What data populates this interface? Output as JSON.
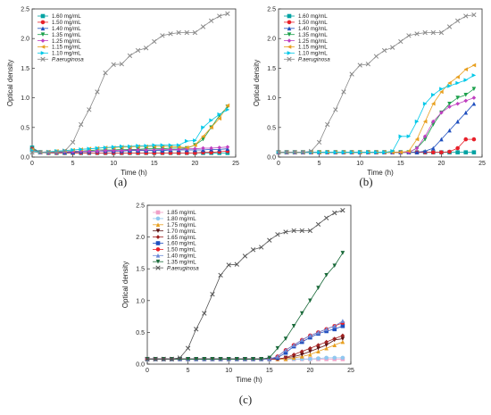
{
  "figure": {
    "panels": [
      {
        "label": "(a)"
      },
      {
        "label": "(b)"
      },
      {
        "label": "(c)"
      }
    ]
  },
  "chart_data": [
    {
      "type": "line",
      "panel": "(a)",
      "xlabel": "Time (h)",
      "ylabel": "Optical density",
      "xlim": [
        0,
        25
      ],
      "ylim": [
        0,
        2.5
      ],
      "xticks": [
        0,
        5,
        10,
        15,
        20,
        25
      ],
      "yticks": [
        0.0,
        0.5,
        1.0,
        1.5,
        2.0,
        2.5
      ],
      "grid": false,
      "legend": "top-left",
      "x": [
        0,
        1,
        2,
        3,
        4,
        5,
        6,
        7,
        8,
        9,
        10,
        11,
        12,
        13,
        14,
        15,
        16,
        17,
        18,
        19,
        20,
        21,
        22,
        23,
        24
      ],
      "series": [
        {
          "name": "1.60 mg/mL",
          "color": "#00a3a3",
          "marker": "square",
          "values": [
            0.16,
            0.08,
            0.07,
            0.07,
            0.07,
            0.07,
            0.07,
            0.07,
            0.07,
            0.07,
            0.07,
            0.07,
            0.07,
            0.07,
            0.07,
            0.07,
            0.07,
            0.07,
            0.07,
            0.07,
            0.07,
            0.07,
            0.07,
            0.07,
            0.07
          ]
        },
        {
          "name": "1.50 mg/mL",
          "color": "#e8202a",
          "marker": "circle",
          "values": [
            0.14,
            0.08,
            0.07,
            0.07,
            0.07,
            0.07,
            0.07,
            0.07,
            0.07,
            0.07,
            0.07,
            0.07,
            0.07,
            0.07,
            0.07,
            0.07,
            0.07,
            0.07,
            0.07,
            0.07,
            0.07,
            0.08,
            0.08,
            0.09,
            0.1
          ]
        },
        {
          "name": "1.40 mg/mL",
          "color": "#1f4fbf",
          "marker": "triangle-up",
          "values": [
            0.13,
            0.08,
            0.08,
            0.08,
            0.08,
            0.08,
            0.09,
            0.09,
            0.1,
            0.1,
            0.1,
            0.1,
            0.11,
            0.11,
            0.11,
            0.11,
            0.11,
            0.12,
            0.12,
            0.12,
            0.12,
            0.12,
            0.13,
            0.13,
            0.14
          ]
        },
        {
          "name": "1.35 mg/mL",
          "color": "#1aa04a",
          "marker": "triangle-down",
          "values": [
            0.12,
            0.08,
            0.08,
            0.09,
            0.09,
            0.1,
            0.1,
            0.11,
            0.12,
            0.12,
            0.12,
            0.13,
            0.13,
            0.13,
            0.14,
            0.14,
            0.14,
            0.15,
            0.15,
            0.15,
            0.2,
            0.3,
            0.5,
            0.7,
            0.85
          ]
        },
        {
          "name": "1.25 mg/mL",
          "color": "#c040c0",
          "marker": "diamond",
          "values": [
            0.12,
            0.08,
            0.08,
            0.08,
            0.09,
            0.09,
            0.1,
            0.1,
            0.1,
            0.11,
            0.11,
            0.11,
            0.12,
            0.12,
            0.12,
            0.12,
            0.13,
            0.13,
            0.13,
            0.14,
            0.14,
            0.15,
            0.15,
            0.16,
            0.17
          ]
        },
        {
          "name": "1.15 mg/mL",
          "color": "#e8a020",
          "marker": "triangle-left",
          "values": [
            0.12,
            0.08,
            0.09,
            0.1,
            0.11,
            0.12,
            0.13,
            0.14,
            0.15,
            0.16,
            0.16,
            0.17,
            0.17,
            0.18,
            0.18,
            0.18,
            0.18,
            0.18,
            0.17,
            0.16,
            0.2,
            0.35,
            0.5,
            0.65,
            0.87
          ]
        },
        {
          "name": "1.10 mg/mL",
          "color": "#00c8e8",
          "marker": "triangle-right",
          "values": [
            0.11,
            0.08,
            0.09,
            0.1,
            0.11,
            0.12,
            0.13,
            0.14,
            0.15,
            0.16,
            0.17,
            0.18,
            0.18,
            0.19,
            0.19,
            0.2,
            0.2,
            0.2,
            0.2,
            0.27,
            0.28,
            0.5,
            0.62,
            0.72,
            0.8
          ]
        },
        {
          "name": "P.aeruginosa",
          "color": "#888888",
          "marker": "x",
          "values": [
            0.08,
            0.08,
            0.08,
            0.08,
            0.1,
            0.25,
            0.55,
            0.8,
            1.1,
            1.42,
            1.56,
            1.57,
            1.71,
            1.8,
            1.84,
            1.95,
            2.05,
            2.08,
            2.1,
            2.1,
            2.1,
            2.2,
            2.3,
            2.38,
            2.42
          ]
        }
      ]
    },
    {
      "type": "line",
      "panel": "(b)",
      "xlabel": "Time (h)",
      "ylabel": "Optical density",
      "xlim": [
        0,
        25
      ],
      "ylim": [
        0,
        2.5
      ],
      "xticks": [
        0,
        5,
        10,
        15,
        20,
        25
      ],
      "yticks": [
        0.0,
        0.5,
        1.0,
        1.5,
        2.0,
        2.5
      ],
      "grid": false,
      "legend": "top-left",
      "x": [
        0,
        1,
        2,
        3,
        4,
        5,
        6,
        7,
        8,
        9,
        10,
        11,
        12,
        13,
        14,
        15,
        16,
        17,
        18,
        19,
        20,
        21,
        22,
        23,
        24
      ],
      "series": [
        {
          "name": "1.60 mg/mL",
          "color": "#00a3a3",
          "marker": "square",
          "values": [
            0.08,
            0.08,
            0.08,
            0.08,
            0.08,
            0.08,
            0.08,
            0.08,
            0.08,
            0.08,
            0.08,
            0.08,
            0.08,
            0.08,
            0.08,
            0.08,
            0.08,
            0.08,
            0.08,
            0.08,
            0.08,
            0.08,
            0.08,
            0.08,
            0.08
          ]
        },
        {
          "name": "1.50 mg/mL",
          "color": "#e8202a",
          "marker": "circle",
          "values": [
            0.08,
            0.08,
            0.08,
            0.08,
            0.08,
            0.08,
            0.08,
            0.08,
            0.08,
            0.08,
            0.08,
            0.08,
            0.08,
            0.08,
            0.08,
            0.08,
            0.08,
            0.08,
            0.08,
            0.08,
            0.08,
            0.09,
            0.15,
            0.3,
            0.3
          ]
        },
        {
          "name": "1.40 mg/mL",
          "color": "#1f4fbf",
          "marker": "triangle-up",
          "values": [
            0.08,
            0.08,
            0.08,
            0.08,
            0.08,
            0.08,
            0.08,
            0.08,
            0.08,
            0.08,
            0.08,
            0.08,
            0.08,
            0.08,
            0.08,
            0.08,
            0.08,
            0.08,
            0.1,
            0.15,
            0.3,
            0.45,
            0.6,
            0.75,
            0.9
          ]
        },
        {
          "name": "1.35 mg/mL",
          "color": "#1aa04a",
          "marker": "triangle-down",
          "values": [
            0.08,
            0.08,
            0.08,
            0.08,
            0.08,
            0.08,
            0.08,
            0.08,
            0.08,
            0.08,
            0.08,
            0.08,
            0.08,
            0.08,
            0.08,
            0.08,
            0.08,
            0.15,
            0.3,
            0.55,
            0.75,
            0.9,
            1.0,
            1.05,
            1.15
          ]
        },
        {
          "name": "1.25 mg/mL",
          "color": "#c040c0",
          "marker": "diamond",
          "values": [
            0.08,
            0.08,
            0.08,
            0.08,
            0.08,
            0.08,
            0.08,
            0.08,
            0.08,
            0.08,
            0.08,
            0.08,
            0.08,
            0.08,
            0.08,
            0.08,
            0.08,
            0.15,
            0.35,
            0.6,
            0.75,
            0.85,
            0.9,
            0.95,
            1.0
          ]
        },
        {
          "name": "1.15 mg/mL",
          "color": "#e8a020",
          "marker": "triangle-left",
          "values": [
            0.08,
            0.08,
            0.08,
            0.08,
            0.08,
            0.08,
            0.08,
            0.08,
            0.08,
            0.08,
            0.08,
            0.08,
            0.08,
            0.08,
            0.08,
            0.08,
            0.1,
            0.3,
            0.6,
            0.9,
            1.1,
            1.25,
            1.35,
            1.48,
            1.55
          ]
        },
        {
          "name": "1.10 mg/mL",
          "color": "#00c8e8",
          "marker": "triangle-right",
          "values": [
            0.08,
            0.08,
            0.08,
            0.08,
            0.08,
            0.08,
            0.08,
            0.08,
            0.08,
            0.08,
            0.08,
            0.08,
            0.08,
            0.08,
            0.1,
            0.35,
            0.35,
            0.6,
            0.9,
            1.05,
            1.15,
            1.2,
            1.25,
            1.3,
            1.38
          ]
        },
        {
          "name": "P.aeruginosa",
          "color": "#888888",
          "marker": "x",
          "values": [
            0.08,
            0.08,
            0.08,
            0.08,
            0.1,
            0.25,
            0.55,
            0.8,
            1.1,
            1.4,
            1.55,
            1.57,
            1.7,
            1.8,
            1.85,
            1.95,
            2.05,
            2.08,
            2.1,
            2.1,
            2.1,
            2.2,
            2.3,
            2.38,
            2.4
          ]
        }
      ]
    },
    {
      "type": "line",
      "panel": "(c)",
      "xlabel": "Time (h)",
      "ylabel": "Optical density",
      "xlim": [
        0,
        25
      ],
      "ylim": [
        0,
        2.5
      ],
      "xticks": [
        0,
        5,
        10,
        15,
        20,
        25
      ],
      "yticks": [
        0.0,
        0.5,
        1.0,
        1.5,
        2.0,
        2.5
      ],
      "grid": false,
      "legend": "top-left",
      "x": [
        0,
        1,
        2,
        3,
        4,
        5,
        6,
        7,
        8,
        9,
        10,
        11,
        12,
        13,
        14,
        15,
        16,
        17,
        18,
        19,
        20,
        21,
        22,
        23,
        24
      ],
      "series": [
        {
          "name": "1.85 mg/mL",
          "color": "#f0a0c8",
          "marker": "square",
          "values": [
            0.08,
            0.08,
            0.08,
            0.08,
            0.08,
            0.08,
            0.08,
            0.08,
            0.08,
            0.08,
            0.08,
            0.08,
            0.08,
            0.08,
            0.08,
            0.08,
            0.08,
            0.08,
            0.08,
            0.08,
            0.08,
            0.08,
            0.08,
            0.08,
            0.08
          ]
        },
        {
          "name": "1.80 mg/mL",
          "color": "#90c8f0",
          "marker": "circle",
          "values": [
            0.08,
            0.08,
            0.08,
            0.08,
            0.08,
            0.08,
            0.08,
            0.08,
            0.08,
            0.08,
            0.08,
            0.08,
            0.08,
            0.08,
            0.08,
            0.08,
            0.08,
            0.08,
            0.08,
            0.08,
            0.08,
            0.09,
            0.1,
            0.1,
            0.1
          ]
        },
        {
          "name": "1.75 mg/mL",
          "color": "#e8a020",
          "marker": "triangle-up",
          "values": [
            0.08,
            0.08,
            0.08,
            0.08,
            0.08,
            0.08,
            0.08,
            0.08,
            0.08,
            0.08,
            0.08,
            0.08,
            0.08,
            0.08,
            0.08,
            0.08,
            0.08,
            0.08,
            0.1,
            0.12,
            0.15,
            0.2,
            0.25,
            0.3,
            0.35
          ]
        },
        {
          "name": "1.70 mg/mL",
          "color": "#5a1010",
          "marker": "triangle-down",
          "values": [
            0.08,
            0.08,
            0.08,
            0.08,
            0.08,
            0.08,
            0.08,
            0.08,
            0.08,
            0.08,
            0.08,
            0.08,
            0.08,
            0.08,
            0.08,
            0.08,
            0.08,
            0.1,
            0.12,
            0.15,
            0.2,
            0.25,
            0.3,
            0.38,
            0.4
          ]
        },
        {
          "name": "1.65 mg/mL",
          "color": "#a02020",
          "marker": "diamond",
          "values": [
            0.08,
            0.08,
            0.08,
            0.08,
            0.08,
            0.08,
            0.08,
            0.08,
            0.08,
            0.08,
            0.08,
            0.08,
            0.08,
            0.08,
            0.08,
            0.08,
            0.08,
            0.1,
            0.15,
            0.2,
            0.25,
            0.3,
            0.35,
            0.4,
            0.45
          ]
        },
        {
          "name": "1.60 mg/mL",
          "color": "#1f4fbf",
          "marker": "square",
          "values": [
            0.08,
            0.08,
            0.08,
            0.08,
            0.08,
            0.08,
            0.08,
            0.08,
            0.08,
            0.08,
            0.08,
            0.08,
            0.08,
            0.08,
            0.08,
            0.08,
            0.1,
            0.18,
            0.28,
            0.35,
            0.42,
            0.48,
            0.52,
            0.55,
            0.6
          ]
        },
        {
          "name": "1.50 mg/mL",
          "color": "#e8202a",
          "marker": "circle",
          "values": [
            0.08,
            0.08,
            0.08,
            0.08,
            0.08,
            0.08,
            0.08,
            0.08,
            0.08,
            0.08,
            0.08,
            0.08,
            0.08,
            0.08,
            0.08,
            0.08,
            0.12,
            0.22,
            0.3,
            0.38,
            0.45,
            0.5,
            0.55,
            0.6,
            0.65
          ]
        },
        {
          "name": "1.40 mg/mL",
          "color": "#6a8ad8",
          "marker": "triangle-up",
          "values": [
            0.08,
            0.08,
            0.08,
            0.08,
            0.08,
            0.08,
            0.08,
            0.08,
            0.08,
            0.08,
            0.08,
            0.08,
            0.08,
            0.08,
            0.08,
            0.08,
            0.12,
            0.22,
            0.3,
            0.38,
            0.45,
            0.5,
            0.55,
            0.6,
            0.68
          ]
        },
        {
          "name": "1.35 mg/mL",
          "color": "#1a6a3a",
          "marker": "triangle-down",
          "values": [
            0.08,
            0.08,
            0.08,
            0.08,
            0.08,
            0.08,
            0.08,
            0.08,
            0.08,
            0.08,
            0.08,
            0.08,
            0.08,
            0.08,
            0.08,
            0.1,
            0.25,
            0.4,
            0.6,
            0.8,
            1.0,
            1.2,
            1.4,
            1.55,
            1.75
          ]
        },
        {
          "name": "P.aeruginosa",
          "color": "#555555",
          "marker": "x",
          "values": [
            0.08,
            0.08,
            0.08,
            0.08,
            0.1,
            0.25,
            0.55,
            0.8,
            1.1,
            1.4,
            1.56,
            1.57,
            1.7,
            1.8,
            1.84,
            1.95,
            2.04,
            2.08,
            2.1,
            2.1,
            2.1,
            2.2,
            2.3,
            2.38,
            2.42
          ]
        }
      ]
    }
  ]
}
